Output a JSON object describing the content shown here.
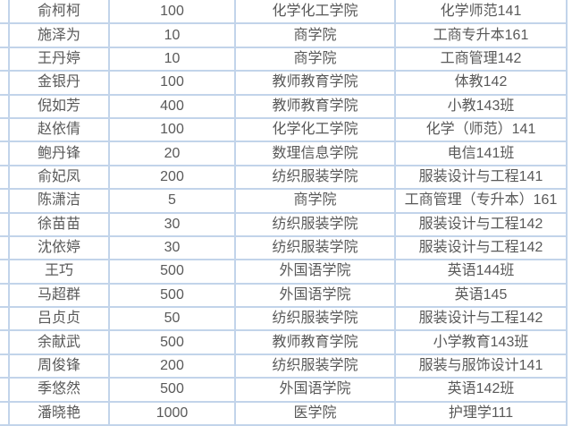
{
  "colors": {
    "border-color": "#c2d4ea",
    "text-color": "#595959",
    "bg-color": "#ffffff"
  },
  "chart_data": {
    "type": "table",
    "columns": [
      "name",
      "amount",
      "college",
      "class_name"
    ],
    "rows": [
      {
        "name": "俞柯柯",
        "amount": "100",
        "college": "化学化工学院",
        "class_name": "化学师范141"
      },
      {
        "name": "施泽为",
        "amount": "10",
        "college": "商学院",
        "class_name": "工商专升本161"
      },
      {
        "name": "王丹婷",
        "amount": "10",
        "college": "商学院",
        "class_name": "工商管理142"
      },
      {
        "name": "金银丹",
        "amount": "100",
        "college": "教师教育学院",
        "class_name": "体教142"
      },
      {
        "name": "倪如芳",
        "amount": "400",
        "college": "教师教育学院",
        "class_name": "小教143班"
      },
      {
        "name": "赵依倩",
        "amount": "100",
        "college": "化学化工学院",
        "class_name": "化学（师范）141"
      },
      {
        "name": "鲍丹锋",
        "amount": "20",
        "college": "数理信息学院",
        "class_name": "电信141班"
      },
      {
        "name": "俞妃凤",
        "amount": "200",
        "college": "纺织服装学院",
        "class_name": "服装设计与工程141"
      },
      {
        "name": "陈潇洁",
        "amount": "5",
        "college": "商学院",
        "class_name": "工商管理（专升本）161"
      },
      {
        "name": "徐苗苗",
        "amount": "30",
        "college": "纺织服装学院",
        "class_name": "服装设计与工程142"
      },
      {
        "name": "沈依婷",
        "amount": "30",
        "college": "纺织服装学院",
        "class_name": "服装设计与工程142"
      },
      {
        "name": "王巧",
        "amount": "500",
        "college": "外国语学院",
        "class_name": "英语144班"
      },
      {
        "name": "马超群",
        "amount": "500",
        "college": "外国语学院",
        "class_name": "英语145"
      },
      {
        "name": "吕贞贞",
        "amount": "50",
        "college": "纺织服装学院",
        "class_name": "服装设计与工程142"
      },
      {
        "name": "余献武",
        "amount": "500",
        "college": "教师教育学院",
        "class_name": "小学教育143班"
      },
      {
        "name": "周俊锋",
        "amount": "200",
        "college": "纺织服装学院",
        "class_name": "服装与服饰设计141"
      },
      {
        "name": "季悠然",
        "amount": "500",
        "college": "外国语学院",
        "class_name": "英语142班"
      },
      {
        "name": "潘晓艳",
        "amount": "1000",
        "college": "医学院",
        "class_name": "护理学111"
      }
    ]
  }
}
